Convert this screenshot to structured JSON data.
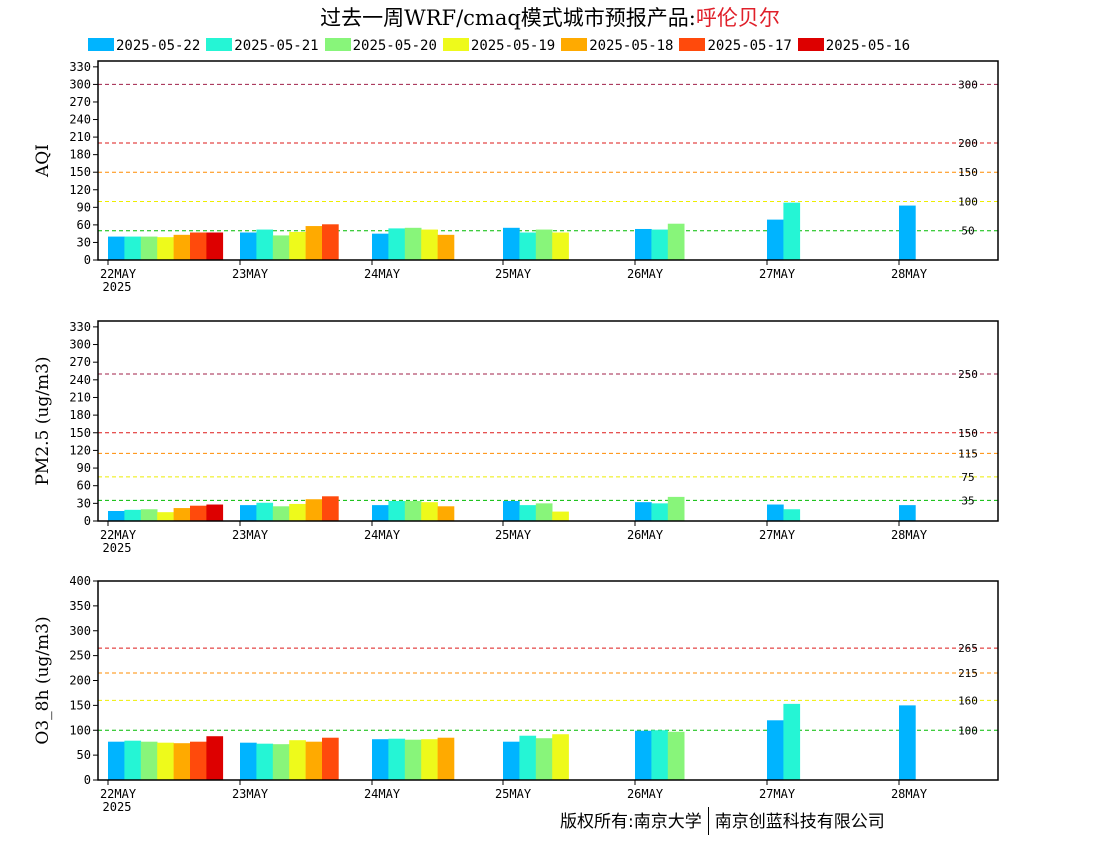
{
  "title": "过去一周WRF/cmaq模式城市预报产品:",
  "city": "呼伦贝尔",
  "footer": {
    "left": "版权所有:南京大学",
    "right": "南京创蓝科技有限公司"
  },
  "colors": {
    "2025-05-22": "#00b4ff",
    "2025-05-21": "#25f5d5",
    "2025-05-20": "#88f57a",
    "2025-05-19": "#eefa1b",
    "2025-05-18": "#ffaa00",
    "2025-05-17": "#ff4a0c",
    "2025-05-16": "#dd0000"
  },
  "legend": [
    "2025-05-22",
    "2025-05-21",
    "2025-05-20",
    "2025-05-19",
    "2025-05-18",
    "2025-05-17",
    "2025-05-16"
  ],
  "chart_data": [
    {
      "type": "bar",
      "ylabel": "AQI",
      "ylim": [
        0,
        340
      ],
      "yticks": [
        0,
        30,
        60,
        90,
        120,
        150,
        180,
        210,
        240,
        270,
        300,
        330
      ],
      "categories": [
        "22MAY",
        "23MAY",
        "24MAY",
        "25MAY",
        "26MAY",
        "27MAY",
        "28MAY"
      ],
      "year_label": "2025",
      "reference_lines": [
        {
          "value": 300,
          "label": "300",
          "color": "#a0204a"
        },
        {
          "value": 200,
          "label": "200",
          "color": "#dd1a1a"
        },
        {
          "value": 150,
          "label": "150",
          "color": "#ff8c00"
        },
        {
          "value": 100,
          "label": "100",
          "color": "#eeee00"
        },
        {
          "value": 50,
          "label": "50",
          "color": "#00bb00"
        }
      ],
      "series": [
        {
          "name": "2025-05-22",
          "values": [
            40,
            47,
            45,
            55,
            53,
            69,
            93
          ]
        },
        {
          "name": "2025-05-21",
          "values": [
            40,
            52,
            54,
            47,
            52,
            98,
            null
          ]
        },
        {
          "name": "2025-05-20",
          "values": [
            40,
            42,
            55,
            52,
            62,
            null,
            null
          ]
        },
        {
          "name": "2025-05-19",
          "values": [
            39,
            48,
            52,
            47,
            null,
            null,
            null
          ]
        },
        {
          "name": "2025-05-18",
          "values": [
            43,
            58,
            43,
            null,
            null,
            null,
            null
          ]
        },
        {
          "name": "2025-05-17",
          "values": [
            47,
            61,
            null,
            null,
            null,
            null,
            null
          ]
        },
        {
          "name": "2025-05-16",
          "values": [
            47,
            null,
            null,
            null,
            null,
            null,
            null
          ]
        }
      ]
    },
    {
      "type": "bar",
      "ylabel": "PM2.5 (ug/m3)",
      "ylim": [
        0,
        340
      ],
      "yticks": [
        0,
        30,
        60,
        90,
        120,
        150,
        180,
        210,
        240,
        270,
        300,
        330
      ],
      "categories": [
        "22MAY",
        "23MAY",
        "24MAY",
        "25MAY",
        "26MAY",
        "27MAY",
        "28MAY"
      ],
      "year_label": "2025",
      "reference_lines": [
        {
          "value": 250,
          "label": "250",
          "color": "#a0204a"
        },
        {
          "value": 150,
          "label": "150",
          "color": "#dd1a1a"
        },
        {
          "value": 115,
          "label": "115",
          "color": "#ff8c00"
        },
        {
          "value": 75,
          "label": "75",
          "color": "#eeee00"
        },
        {
          "value": 35,
          "label": "35",
          "color": "#00bb00"
        }
      ],
      "series": [
        {
          "name": "2025-05-22",
          "values": [
            17,
            27,
            27,
            34,
            32,
            28,
            27
          ]
        },
        {
          "name": "2025-05-21",
          "values": [
            19,
            31,
            34,
            27,
            30,
            20,
            null
          ]
        },
        {
          "name": "2025-05-20",
          "values": [
            20,
            25,
            34,
            30,
            41,
            null,
            null
          ]
        },
        {
          "name": "2025-05-19",
          "values": [
            15,
            29,
            32,
            16,
            null,
            null,
            null
          ]
        },
        {
          "name": "2025-05-18",
          "values": [
            22,
            37,
            25,
            null,
            null,
            null,
            null
          ]
        },
        {
          "name": "2025-05-17",
          "values": [
            26,
            42,
            null,
            null,
            null,
            null,
            null
          ]
        },
        {
          "name": "2025-05-16",
          "values": [
            28,
            null,
            null,
            null,
            null,
            null,
            null
          ]
        }
      ]
    },
    {
      "type": "bar",
      "ylabel": "O3_8h (ug/m3)",
      "ylim": [
        0,
        400
      ],
      "yticks": [
        0,
        50,
        100,
        150,
        200,
        250,
        300,
        350,
        400
      ],
      "categories": [
        "22MAY",
        "23MAY",
        "24MAY",
        "25MAY",
        "26MAY",
        "27MAY",
        "28MAY"
      ],
      "year_label": "2025",
      "reference_lines": [
        {
          "value": 265,
          "label": "265",
          "color": "#dd1a1a"
        },
        {
          "value": 215,
          "label": "215",
          "color": "#ff8c00"
        },
        {
          "value": 160,
          "label": "160",
          "color": "#eeee00"
        },
        {
          "value": 100,
          "label": "100",
          "color": "#00bb00"
        }
      ],
      "series": [
        {
          "name": "2025-05-22",
          "values": [
            77,
            75,
            82,
            77,
            99,
            120,
            150
          ]
        },
        {
          "name": "2025-05-21",
          "values": [
            79,
            73,
            83,
            89,
            100,
            153,
            null
          ]
        },
        {
          "name": "2025-05-20",
          "values": [
            77,
            72,
            81,
            84,
            97,
            null,
            null
          ]
        },
        {
          "name": "2025-05-19",
          "values": [
            75,
            80,
            82,
            92,
            null,
            null,
            null
          ]
        },
        {
          "name": "2025-05-18",
          "values": [
            74,
            77,
            85,
            null,
            null,
            null,
            null
          ]
        },
        {
          "name": "2025-05-17",
          "values": [
            77,
            85,
            null,
            null,
            null,
            null,
            null
          ]
        },
        {
          "name": "2025-05-16",
          "values": [
            88,
            null,
            null,
            null,
            null,
            null,
            null
          ]
        }
      ]
    }
  ]
}
